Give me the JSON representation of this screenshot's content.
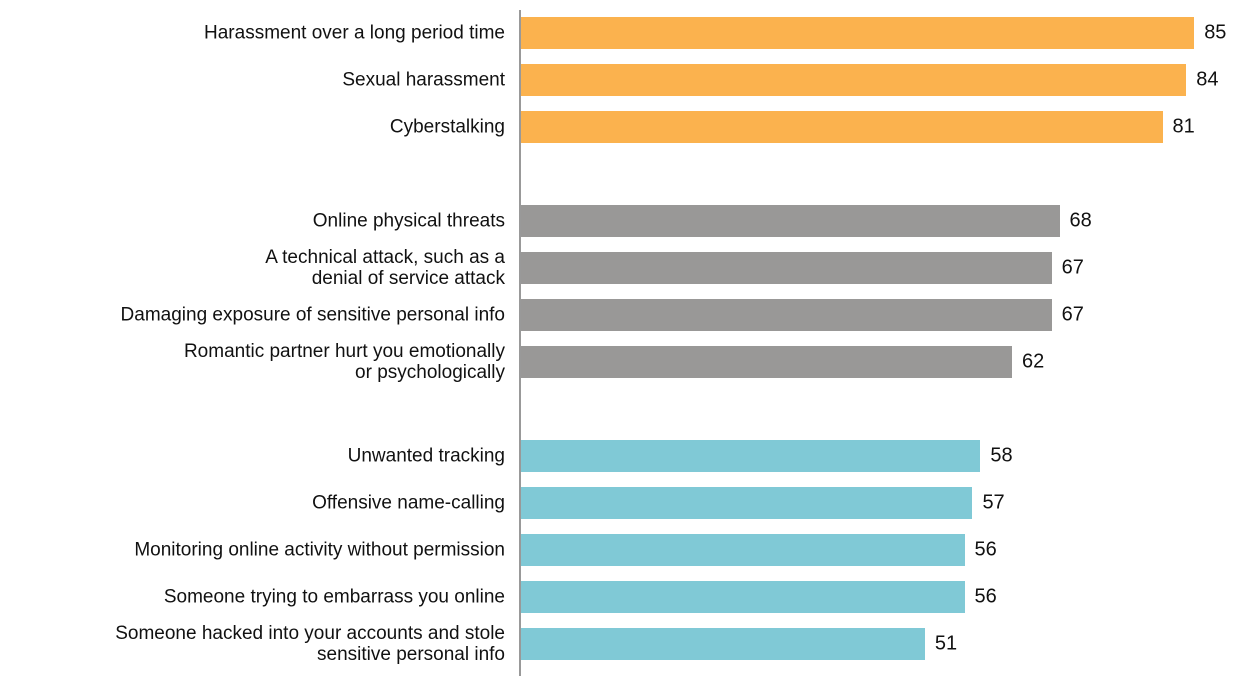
{
  "chart_data": {
    "type": "bar",
    "categories": [
      "Harassment over a long period time",
      "Sexual harassment",
      "Cyberstalking",
      "Online physical threats",
      "A technical attack, such as a\ndenial of service attack",
      "Damaging exposure of sensitive personal info",
      "Romantic partner hurt you emotionally\nor psychologically",
      "Unwanted tracking",
      "Offensive name-calling",
      "Monitoring online activity without permission",
      "Someone trying to embarrass you online",
      "Someone hacked into your accounts and stole\nsensitive personal info"
    ],
    "values": [
      85,
      84,
      81,
      68,
      67,
      67,
      62,
      58,
      57,
      56,
      56,
      51
    ],
    "colors": [
      "#fbb24e",
      "#fbb24e",
      "#fbb24e",
      "#999897",
      "#999897",
      "#999897",
      "#999897",
      "#80c9d6",
      "#80c9d6",
      "#80c9d6",
      "#80c9d6",
      "#80c9d6"
    ]
  }
}
